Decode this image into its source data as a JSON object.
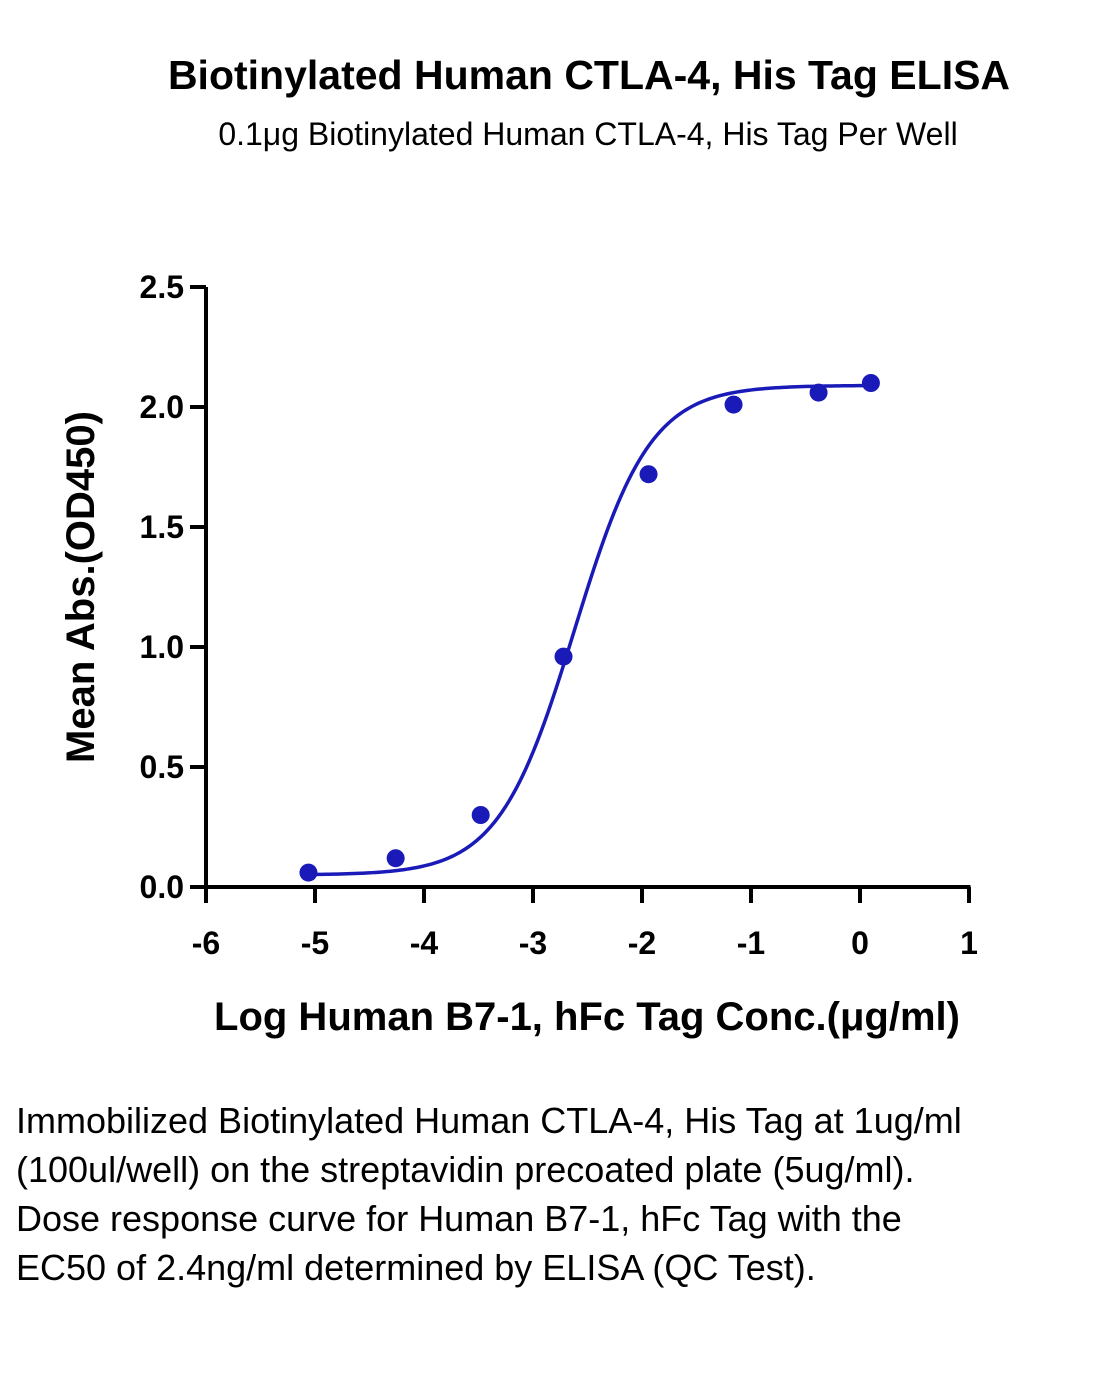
{
  "chart_data": {
    "type": "scatter",
    "title": "Biotinylated Human CTLA-4, His Tag ELISA",
    "subtitle": "0.1μg Biotinylated Human CTLA-4, His Tag Per Well",
    "xlabel": "Log Human B7-1, hFc Tag Conc.(μg/ml)",
    "ylabel": "Mean Abs.(OD450)",
    "xlim": [
      -6,
      1
    ],
    "ylim": [
      0,
      2.5
    ],
    "x_ticks": [
      "-6",
      "-5",
      "-4",
      "-3",
      "-2",
      "-1",
      "0",
      "1"
    ],
    "y_ticks": [
      "0.0",
      "0.5",
      "1.0",
      "1.5",
      "2.0",
      "2.5"
    ],
    "grid": false,
    "legend": "none",
    "color": "#1a1ab8",
    "series": [
      {
        "x": [
          -5.06,
          -4.26,
          -3.48,
          -2.72,
          -1.94,
          -1.16,
          -0.38,
          0.1
        ],
        "y": [
          0.06,
          0.12,
          0.3,
          0.96,
          1.72,
          2.01,
          2.06,
          2.1
        ]
      }
    ],
    "fit": {
      "model": "4PL sigmoid",
      "bottom": 0.05,
      "top": 2.09,
      "logEC50": -2.62,
      "hill": 1.25
    }
  },
  "caption": "Immobilized Biotinylated Human CTLA-4, His Tag at 1ug/ml (100ul/well) on the streptavidin precoated plate (5ug/ml). Dose response curve for Human B7-1, hFc Tag with the EC50 of 2.4ng/ml determined by ELISA (QC Test)."
}
